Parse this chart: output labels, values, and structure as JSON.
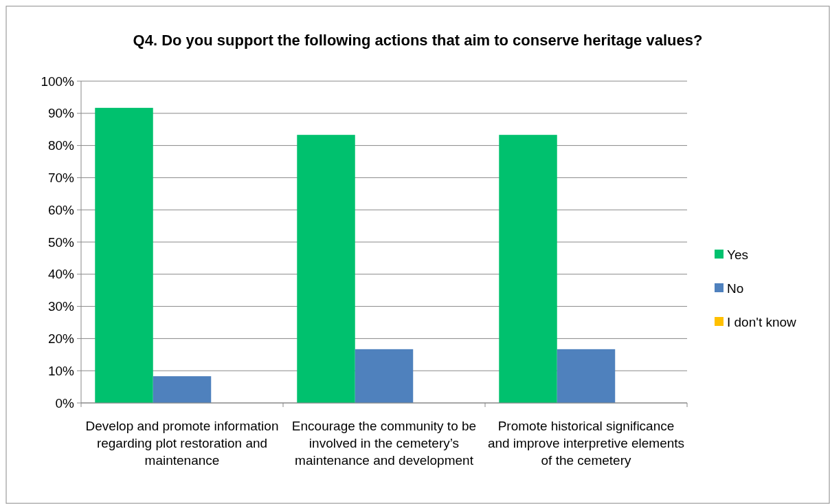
{
  "chart_data": {
    "type": "bar",
    "title": "Q4. Do you support the following actions that aim to conserve heritage values?",
    "categories": [
      "Develop and promote information regarding plot restoration and maintenance",
      "Encourage the community to be involved in the cemetery’s maintenance and development",
      "Promote historical significance and improve interpretive elements of the cemetery"
    ],
    "series": [
      {
        "name": "Yes",
        "color": "#00c16e",
        "values": [
          91.7,
          83.3,
          83.3
        ]
      },
      {
        "name": "No",
        "color": "#4f81bd",
        "values": [
          8.3,
          16.7,
          16.7
        ]
      },
      {
        "name": "I don't know",
        "color": "#ffc000",
        "values": [
          0,
          0,
          0
        ]
      }
    ],
    "ylim": [
      0,
      100
    ],
    "yticks": [
      {
        "value": 0,
        "label": "0%"
      },
      {
        "value": 10,
        "label": "10%"
      },
      {
        "value": 20,
        "label": "20%"
      },
      {
        "value": 30,
        "label": "30%"
      },
      {
        "value": 40,
        "label": "40%"
      },
      {
        "value": 50,
        "label": "50%"
      },
      {
        "value": 60,
        "label": "60%"
      },
      {
        "value": 70,
        "label": "70%"
      },
      {
        "value": 80,
        "label": "80%"
      },
      {
        "value": 90,
        "label": "90%"
      },
      {
        "value": 100,
        "label": "100%"
      }
    ],
    "grid": "y",
    "legend": "right"
  }
}
